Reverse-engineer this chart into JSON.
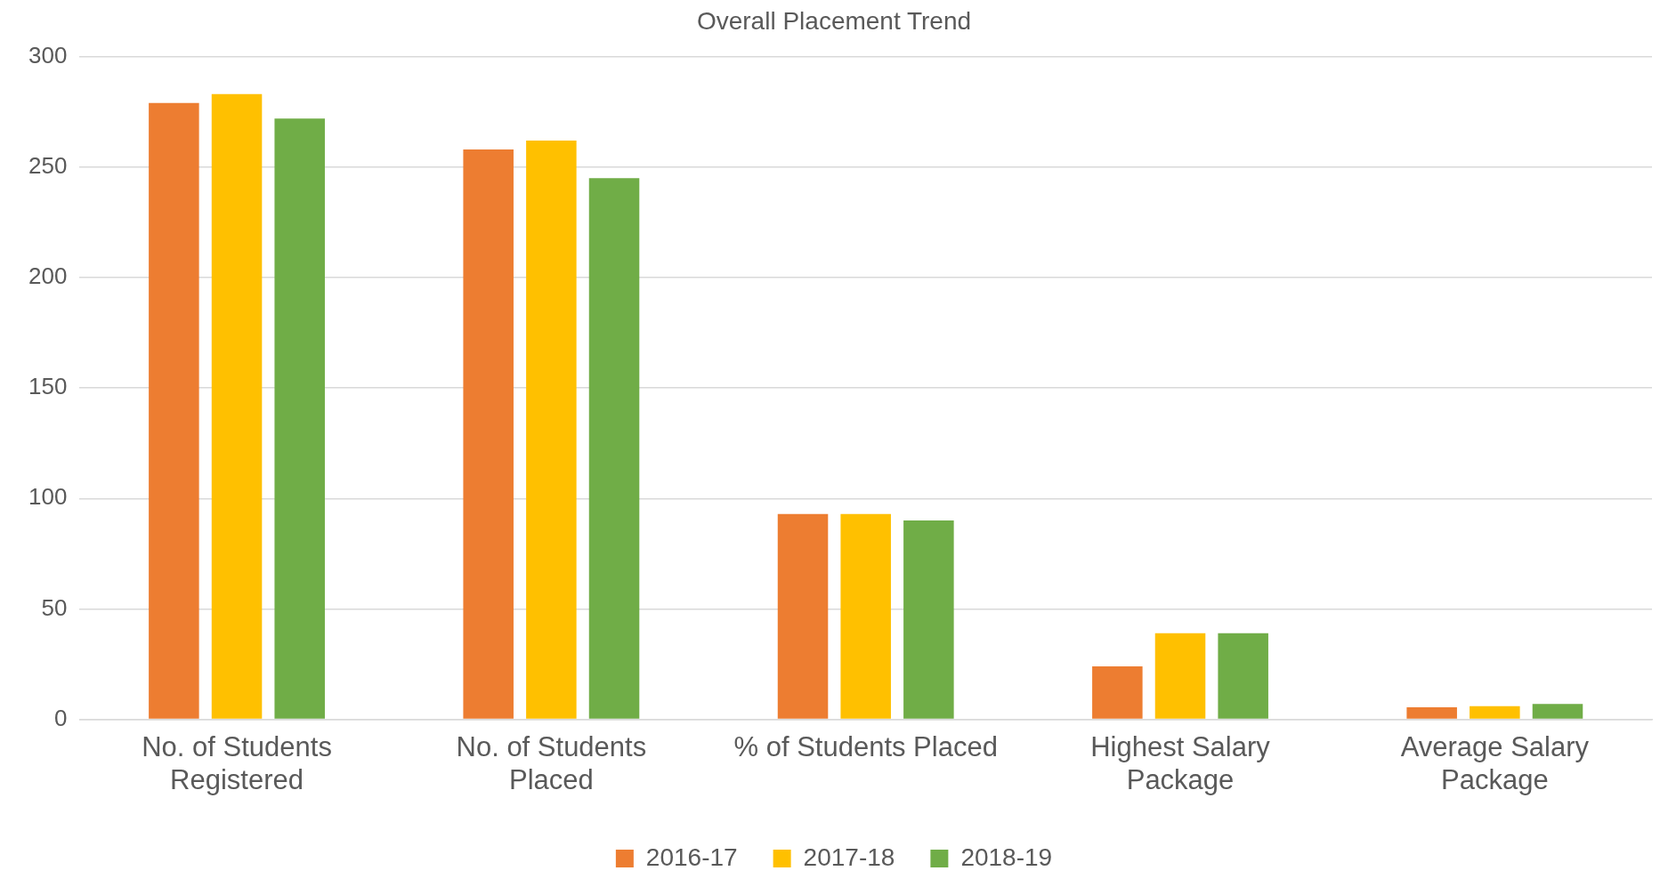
{
  "chart_data": {
    "type": "bar",
    "title": "Overall Placement Trend",
    "categories": [
      "No. of Students Registered",
      "No. of Students Placed",
      "% of Students Placed",
      "Highest Salary Package",
      "Average Salary Package"
    ],
    "series": [
      {
        "name": "2016-17",
        "color": "#ed7d31",
        "values": [
          279,
          258,
          93,
          24,
          5.5
        ]
      },
      {
        "name": "2017-18",
        "color": "#ffc000",
        "values": [
          283,
          262,
          93,
          39,
          6
        ]
      },
      {
        "name": "2018-19",
        "color": "#70ad47",
        "values": [
          272,
          245,
          90,
          39,
          7
        ]
      }
    ],
    "ylim": [
      0,
      300
    ],
    "yticks": [
      0,
      50,
      100,
      150,
      200,
      250,
      300
    ],
    "grid": "y",
    "legend": "bottom"
  }
}
